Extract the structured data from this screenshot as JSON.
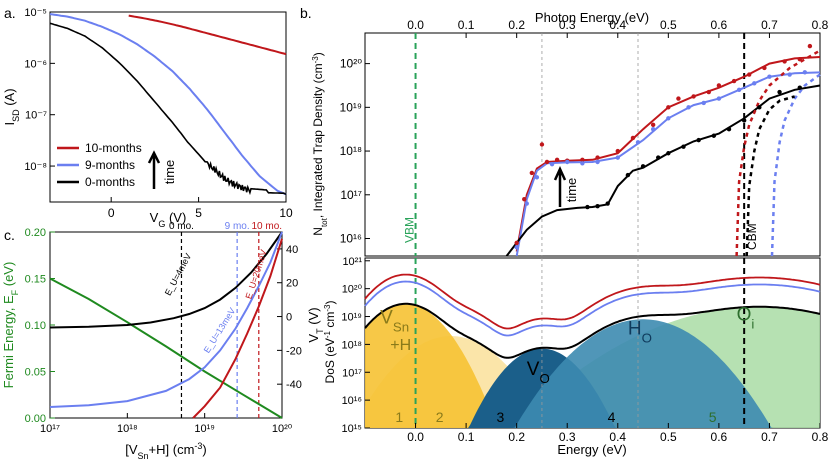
{
  "colors": {
    "red": "#c0171b",
    "blue": "#6b7ff0",
    "black": "#000000",
    "green": "#1f8a1f",
    "vbm": "#2aa35a",
    "gold": "#f6c233",
    "light_gold": "#f9dc8c",
    "teal": "#1b5f8a",
    "mid_teal": "#3d8bb0",
    "light_green": "#a9dca4",
    "grid": "#9a9a9a"
  },
  "panel_labels": [
    "a.",
    "b.",
    "c."
  ],
  "chart_data": [
    {
      "id": "a",
      "type": "line",
      "xlabel": "V_G (V)",
      "ylabel": "I_SD (A)",
      "xlim": [
        -3.5,
        10
      ],
      "ylim_log10": [
        -8.7,
        -5
      ],
      "xticks": [
        0,
        5,
        10
      ],
      "yticks_log10": [
        -8,
        -7,
        -6,
        -5
      ],
      "legend": {
        "position": "bottom-left",
        "entries": [
          "10-months",
          "9-months",
          "0-months"
        ]
      },
      "annotation": "time",
      "series": [
        {
          "name": "10-months",
          "color": "red",
          "x": [
            1.0,
            2.0,
            3.0,
            4.0,
            5.0,
            6.0,
            7.0,
            8.0,
            9.0,
            10.0
          ],
          "log10_y": [
            -5.07,
            -5.13,
            -5.2,
            -5.28,
            -5.37,
            -5.46,
            -5.55,
            -5.64,
            -5.73,
            -5.82
          ]
        },
        {
          "name": "9-months",
          "color": "blue",
          "x": [
            -3.5,
            -2.5,
            -1.5,
            -0.5,
            0.5,
            1.5,
            2.5,
            3.5,
            4.5,
            5.5,
            6.5,
            7.5,
            8.5,
            9.5,
            10.0
          ],
          "log10_y": [
            -5.04,
            -5.09,
            -5.17,
            -5.29,
            -5.44,
            -5.63,
            -5.87,
            -6.15,
            -6.5,
            -6.9,
            -7.35,
            -7.8,
            -8.2,
            -8.48,
            -8.55
          ]
        },
        {
          "name": "0-months",
          "color": "black",
          "x": [
            -3.5,
            -2.5,
            -1.5,
            -0.5,
            0.5,
            1.5,
            2.5,
            3.5,
            4.5,
            5.5,
            6.0,
            6.5,
            7.0,
            7.5,
            8.0,
            9.0,
            10.0
          ],
          "log10_y": [
            -5.22,
            -5.32,
            -5.47,
            -5.7,
            -6.0,
            -6.35,
            -6.75,
            -7.15,
            -7.58,
            -7.95,
            -8.1,
            -8.25,
            -8.35,
            -8.42,
            -8.48,
            -8.52,
            -8.55
          ]
        }
      ]
    },
    {
      "id": "b_top",
      "type": "line",
      "xlabel_top": "Photon Energy (eV)",
      "ylabel": "N_tot, Integrated Trap Density (cm⁻³)",
      "xlim": [
        -0.1,
        0.8
      ],
      "ylim_log10": [
        15.6,
        20.7
      ],
      "xticks": [
        0.0,
        0.1,
        0.2,
        0.3,
        0.4,
        0.5,
        0.6,
        0.7,
        0.8
      ],
      "yticks_log10": [
        16,
        17,
        18,
        19,
        20
      ],
      "vlines": {
        "VBM": 0.0,
        "CBM": 0.65
      },
      "labels": {
        "vbm": "VBM",
        "cbm": "CBM",
        "time": "time"
      },
      "series": [
        {
          "name": "10-months",
          "color": "red",
          "x": [
            0.2,
            0.22,
            0.24,
            0.26,
            0.3,
            0.35,
            0.4,
            0.45,
            0.5,
            0.55,
            0.6,
            0.65,
            0.7,
            0.75,
            0.8
          ],
          "log10_y": [
            15.7,
            17.0,
            17.6,
            17.75,
            17.78,
            17.8,
            17.95,
            18.5,
            19.0,
            19.25,
            19.45,
            19.7,
            20.0,
            20.12,
            20.15
          ]
        },
        {
          "name": "9-months",
          "color": "blue",
          "x": [
            0.2,
            0.22,
            0.24,
            0.26,
            0.3,
            0.35,
            0.4,
            0.45,
            0.5,
            0.55,
            0.6,
            0.65,
            0.7,
            0.75,
            0.8
          ],
          "log10_y": [
            15.6,
            16.9,
            17.55,
            17.72,
            17.74,
            17.75,
            17.85,
            18.25,
            18.75,
            19.05,
            19.2,
            19.45,
            19.7,
            19.78,
            19.8
          ]
        },
        {
          "name": "0-months",
          "color": "black",
          "x": [
            0.18,
            0.2,
            0.22,
            0.25,
            0.28,
            0.32,
            0.35,
            0.38,
            0.4,
            0.43,
            0.45,
            0.5,
            0.55,
            0.6,
            0.65,
            0.7,
            0.75,
            0.8
          ],
          "log10_y": [
            15.5,
            15.9,
            16.2,
            16.5,
            16.65,
            16.7,
            16.72,
            16.78,
            17.2,
            17.55,
            17.62,
            17.95,
            18.22,
            18.4,
            18.75,
            19.2,
            19.4,
            19.5
          ]
        },
        {
          "name": "10-months dotted",
          "color": "red",
          "dotted": true,
          "x": [
            0.635,
            0.64,
            0.65,
            0.66,
            0.68,
            0.7,
            0.74,
            0.8
          ],
          "log10_y": [
            15.6,
            17.3,
            18.1,
            18.6,
            19.15,
            19.5,
            19.9,
            20.3
          ]
        },
        {
          "name": "9-months dotted",
          "color": "blue",
          "dotted": true,
          "x": [
            0.705,
            0.71,
            0.72,
            0.73,
            0.75,
            0.77,
            0.8
          ],
          "log10_y": [
            15.6,
            17.3,
            18.2,
            18.7,
            19.2,
            19.5,
            19.75
          ]
        },
        {
          "name": "0-months dotted",
          "color": "black",
          "dotted": true,
          "x": [
            0.655,
            0.66,
            0.67,
            0.68,
            0.7,
            0.72,
            0.75
          ],
          "log10_y": [
            15.6,
            17.2,
            18.0,
            18.5,
            18.95,
            19.15,
            19.25
          ]
        }
      ],
      "markers": [
        {
          "color": "red",
          "x": [
            0.2,
            0.215,
            0.23,
            0.25,
            0.26,
            0.28,
            0.3,
            0.33,
            0.36,
            0.4,
            0.43,
            0.47,
            0.5,
            0.52,
            0.55,
            0.58,
            0.6,
            0.63,
            0.66,
            0.69,
            0.73,
            0.76,
            0.78
          ],
          "log10_y": [
            15.9,
            16.9,
            17.5,
            18.15,
            17.75,
            17.8,
            17.78,
            17.8,
            17.85,
            18.0,
            18.3,
            18.6,
            19.0,
            19.2,
            19.25,
            19.35,
            19.5,
            19.6,
            19.75,
            19.9,
            20.05,
            20.1,
            20.4
          ]
        },
        {
          "color": "blue",
          "x": [
            0.2,
            0.22,
            0.24,
            0.27,
            0.3,
            0.33,
            0.36,
            0.4,
            0.44,
            0.47,
            0.5,
            0.54,
            0.57,
            0.6,
            0.64,
            0.67,
            0.7,
            0.74,
            0.77
          ],
          "log10_y": [
            15.8,
            16.8,
            17.4,
            17.7,
            17.75,
            17.72,
            17.75,
            17.85,
            18.2,
            18.5,
            18.75,
            19.0,
            19.1,
            19.2,
            19.4,
            19.55,
            19.7,
            19.75,
            19.8
          ]
        },
        {
          "color": "black",
          "x": [
            0.34,
            0.36,
            0.38,
            0.42,
            0.45,
            0.48,
            0.5,
            0.53,
            0.56,
            0.59,
            0.62,
            0.65,
            0.68,
            0.72,
            0.76
          ],
          "log10_y": [
            16.72,
            16.74,
            16.8,
            17.45,
            17.65,
            17.85,
            17.95,
            18.1,
            18.25,
            18.35,
            18.5,
            18.7,
            19.0,
            19.35,
            19.45
          ]
        }
      ]
    },
    {
      "id": "b_bottom",
      "type": "area",
      "xlabel": "Energy (eV)",
      "ylabel": "DoS (eV⁻¹ cm⁻³)",
      "xlim": [
        -0.1,
        0.8
      ],
      "ylim_log10": [
        15,
        21.1
      ],
      "xticks": [
        0.0,
        0.1,
        0.2,
        0.3,
        0.4,
        0.5,
        0.6,
        0.7,
        0.8
      ],
      "yticks_log10": [
        15,
        16,
        17,
        18,
        19,
        20,
        21
      ],
      "region_numbers": [
        "1",
        "2",
        "3",
        "4",
        "5"
      ],
      "labels": {
        "vsn_main": "V",
        "vsn_sub": "Sn",
        "vsn_h": "+H",
        "vo_main": "V",
        "vo_sub": "O",
        "ho_main": "H",
        "ho_sub": "O",
        "oi_main": "O",
        "oi_sub": "i"
      },
      "gaussians": [
        {
          "name": "V_Sn+H",
          "color": "gold",
          "center": -0.02,
          "peak_log10": 19.45,
          "sigma": 0.04
        },
        {
          "name": "V_Sn+H shoulder",
          "color": "light_gold",
          "center": 0.07,
          "peak_log10": 18.3,
          "sigma": 0.05
        },
        {
          "name": "V_O",
          "color": "teal",
          "center": 0.25,
          "peak_log10": 17.85,
          "sigma": 0.04
        },
        {
          "name": "H_O",
          "color": "mid_teal",
          "center": 0.45,
          "peak_log10": 18.9,
          "sigma": 0.06
        },
        {
          "name": "O_i",
          "color": "light_green",
          "center": 0.68,
          "peak_log10": 19.35,
          "sigma": 0.11
        }
      ],
      "envelopes": [
        {
          "name": "0-months",
          "color": "black",
          "shift_log10": 0.0
        },
        {
          "name": "9-months",
          "color": "blue",
          "shift_log10": 0.8
        },
        {
          "name": "10-months",
          "color": "red",
          "shift_log10": 1.05
        }
      ]
    },
    {
      "id": "c",
      "type": "line",
      "xlabel": "[V_Sn+H] (cm⁻³)",
      "ylabel_left": "Fermi Energy, E_F (eV)",
      "ylabel_right": "V_T (V)",
      "xlim_log10": [
        17,
        20
      ],
      "ylim_left": [
        0,
        0.2
      ],
      "ylim_right": [
        -60,
        50
      ],
      "xticks_log10": [
        17,
        18,
        19,
        20
      ],
      "xtick_labels": [
        "10¹⁷",
        "10¹⁸",
        "10¹⁹",
        "10²⁰"
      ],
      "yticks_left": [
        0.0,
        0.05,
        0.1,
        0.15,
        0.2
      ],
      "yticks_left_labels": [
        "0.00",
        "0.05",
        "0.10",
        "0.15",
        "0.20"
      ],
      "yticks_right": [
        -40,
        -20,
        0,
        20,
        40
      ],
      "vlines": [
        {
          "label": "0 mo.",
          "x_log10": 18.7,
          "color": "black"
        },
        {
          "label": "9 mo.",
          "x_log10": 19.42,
          "color": "blue"
        },
        {
          "label": "10 mo.",
          "x_log10": 19.7,
          "color": "red"
        }
      ],
      "curve_labels": [
        "E_U=4meV",
        "E_U=13meV",
        "E_U=20meV"
      ],
      "series": [
        {
          "name": "E_F",
          "axis": "left",
          "color": "green",
          "x_log10": [
            17,
            17.5,
            18,
            18.5,
            19,
            19.5,
            20
          ],
          "y": [
            0.15,
            0.128,
            0.103,
            0.077,
            0.05,
            0.025,
            0.0
          ]
        },
        {
          "name": "E_U=4meV",
          "axis": "right",
          "color": "black",
          "x_log10": [
            17,
            17.5,
            18,
            18.3,
            18.6,
            18.8,
            19.0,
            19.2,
            19.4,
            19.6,
            19.8,
            20.0
          ],
          "y": [
            -6.5,
            -6,
            -5,
            -3.5,
            -1,
            1.5,
            5,
            10,
            17,
            26,
            37,
            50
          ]
        },
        {
          "name": "E_U=13meV",
          "axis": "right",
          "color": "blue",
          "x_log10": [
            17,
            17.5,
            18,
            18.5,
            18.8,
            19.0,
            19.2,
            19.4,
            19.55,
            19.7,
            19.85,
            20.0
          ],
          "y": [
            -53.5,
            -52.5,
            -50,
            -44,
            -37,
            -30,
            -20,
            -7,
            5,
            18,
            32,
            50
          ]
        },
        {
          "name": "E_U=20meV",
          "axis": "right",
          "color": "red",
          "x_log10": [
            18.85,
            19.0,
            19.2,
            19.4,
            19.55,
            19.7,
            19.85,
            20.0
          ],
          "y": [
            -60,
            -53,
            -42,
            -25,
            -10,
            6,
            24,
            46
          ]
        }
      ]
    }
  ]
}
